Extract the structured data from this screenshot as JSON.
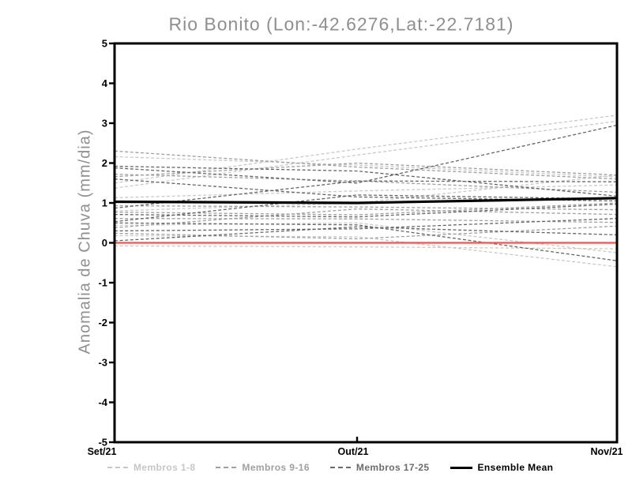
{
  "chart_data": {
    "type": "line",
    "title": "Rio Bonito (Lon:-42.6276,Lat:-22.7181)",
    "xlabel": "",
    "ylabel": "Anomalia de Chuva (mm/dia)",
    "categories": [
      "Set/21",
      "Out/21",
      "Nov/21"
    ],
    "ylim": [
      -5,
      5
    ],
    "yticks": [
      5,
      4,
      3,
      2,
      1,
      0,
      -1,
      -2,
      -3,
      -4,
      -5
    ],
    "grid": false,
    "legend_position": "bottom",
    "colors": {
      "members_1_8": "#c9c9c9",
      "members_9_16": "#9f9f9f",
      "members_17_25": "#656565",
      "ensemble_mean": "#000000",
      "zero_line": "#f4534e",
      "frame": "#000000",
      "title_text": "#8f8f8f"
    },
    "series": [
      {
        "name": "Membro 1",
        "group": "Membros 1-8",
        "color": "#c9c9c9",
        "style": "dashed",
        "width": 1.3,
        "values": [
          2.16,
          1.95,
          1.65
        ]
      },
      {
        "name": "Membro 2",
        "group": "Membros 1-8",
        "color": "#c9c9c9",
        "style": "dashed",
        "width": 1.3,
        "values": [
          1.5,
          2.35,
          3.2
        ]
      },
      {
        "name": "Membro 3",
        "group": "Membros 1-8",
        "color": "#c9c9c9",
        "style": "dashed",
        "width": 1.3,
        "values": [
          1.37,
          2.2,
          3.05
        ]
      },
      {
        "name": "Membro 4",
        "group": "Membros 1-8",
        "color": "#c9c9c9",
        "style": "dashed",
        "width": 1.3,
        "values": [
          1.13,
          1.3,
          1.45
        ]
      },
      {
        "name": "Membro 5",
        "group": "Membros 1-8",
        "color": "#c9c9c9",
        "style": "dashed",
        "width": 1.3,
        "values": [
          0.44,
          0.5,
          -0.25
        ]
      },
      {
        "name": "Membro 6",
        "group": "Membros 1-8",
        "color": "#c9c9c9",
        "style": "dashed",
        "width": 1.3,
        "values": [
          0.18,
          0.15,
          -0.6
        ]
      },
      {
        "name": "Membro 7",
        "group": "Membros 1-8",
        "color": "#c9c9c9",
        "style": "dashed",
        "width": 1.3,
        "values": [
          -0.08,
          -0.1,
          -0.15
        ]
      },
      {
        "name": "Membro 8",
        "group": "Membros 1-8",
        "color": "#c9c9c9",
        "style": "dashed",
        "width": 1.3,
        "values": [
          0.8,
          1.0,
          1.7
        ]
      },
      {
        "name": "Membro 9",
        "group": "Membros 9-16",
        "color": "#9f9f9f",
        "style": "dashed",
        "width": 1.3,
        "values": [
          2.3,
          1.9,
          1.6
        ]
      },
      {
        "name": "Membro 10",
        "group": "Membros 9-16",
        "color": "#9f9f9f",
        "style": "dashed",
        "width": 1.3,
        "values": [
          1.72,
          1.55,
          1.27
        ]
      },
      {
        "name": "Membro 11",
        "group": "Membros 9-16",
        "color": "#9f9f9f",
        "style": "dashed",
        "width": 1.3,
        "values": [
          1.66,
          2.0,
          1.7
        ]
      },
      {
        "name": "Membro 12",
        "group": "Membros 9-16",
        "color": "#9f9f9f",
        "style": "dashed",
        "width": 1.3,
        "values": [
          0.93,
          0.9,
          0.83
        ]
      },
      {
        "name": "Membro 13",
        "group": "Membros 9-16",
        "color": "#9f9f9f",
        "style": "dashed",
        "width": 1.3,
        "values": [
          0.77,
          0.7,
          1.0
        ]
      },
      {
        "name": "Membro 14",
        "group": "Membros 9-16",
        "color": "#9f9f9f",
        "style": "dashed",
        "width": 1.3,
        "values": [
          0.61,
          0.6,
          0.51
        ]
      },
      {
        "name": "Membro 15",
        "group": "Membros 9-16",
        "color": "#9f9f9f",
        "style": "dashed",
        "width": 1.3,
        "values": [
          0.38,
          0.85,
          0.71
        ]
      },
      {
        "name": "Membro 16",
        "group": "Membros 9-16",
        "color": "#9f9f9f",
        "style": "dashed",
        "width": 1.3,
        "values": [
          0.24,
          0.1,
          0.42
        ]
      },
      {
        "name": "Membro 17",
        "group": "Membros 17-25",
        "color": "#656565",
        "style": "dashed",
        "width": 1.3,
        "values": [
          1.92,
          1.8,
          1.17
        ]
      },
      {
        "name": "Membro 18",
        "group": "Membros 17-25",
        "color": "#656565",
        "style": "dashed",
        "width": 1.3,
        "values": [
          1.88,
          1.5,
          2.95
        ]
      },
      {
        "name": "Membro 19",
        "group": "Membros 17-25",
        "color": "#656565",
        "style": "dashed",
        "width": 1.3,
        "values": [
          1.6,
          1.15,
          1.05
        ]
      },
      {
        "name": "Membro 20",
        "group": "Membros 17-25",
        "color": "#656565",
        "style": "dashed",
        "width": 1.3,
        "values": [
          0.87,
          1.55,
          1.53
        ]
      },
      {
        "name": "Membro 21",
        "group": "Membros 17-25",
        "color": "#656565",
        "style": "dashed",
        "width": 1.3,
        "values": [
          0.71,
          0.65,
          0.97
        ]
      },
      {
        "name": "Membro 22",
        "group": "Membros 17-25",
        "color": "#656565",
        "style": "dashed",
        "width": 1.3,
        "values": [
          0.53,
          1.2,
          1.1
        ]
      },
      {
        "name": "Membro 23",
        "group": "Membros 17-25",
        "color": "#656565",
        "style": "dashed",
        "width": 1.3,
        "values": [
          0.5,
          0.45,
          -0.45
        ]
      },
      {
        "name": "Membro 24",
        "group": "Membros 17-25",
        "color": "#656565",
        "style": "dashed",
        "width": 1.3,
        "values": [
          0.3,
          0.35,
          0.61
        ]
      },
      {
        "name": "Membro 25",
        "group": "Membros 17-25",
        "color": "#656565",
        "style": "dashed",
        "width": 1.3,
        "values": [
          0.05,
          0.4,
          0.2
        ]
      },
      {
        "name": "Zero",
        "group": "reference",
        "color": "#f4534e",
        "style": "solid",
        "width": 2.2,
        "values": [
          0,
          0,
          0
        ]
      },
      {
        "name": "Ensemble Mean",
        "group": "mean",
        "color": "#000000",
        "style": "solid",
        "width": 3.2,
        "values": [
          1.03,
          1.0,
          1.12
        ]
      }
    ],
    "legend": [
      {
        "label": "Membros 1-8",
        "color": "#c6c6c6",
        "style": "dashed"
      },
      {
        "label": "Membros 9-16",
        "color": "#9f9f9f",
        "style": "dashed"
      },
      {
        "label": "Membros 17-25",
        "color": "#6b6b6b",
        "style": "dashed"
      },
      {
        "label": "Ensemble Mean",
        "color": "#000000",
        "style": "solid"
      }
    ]
  }
}
